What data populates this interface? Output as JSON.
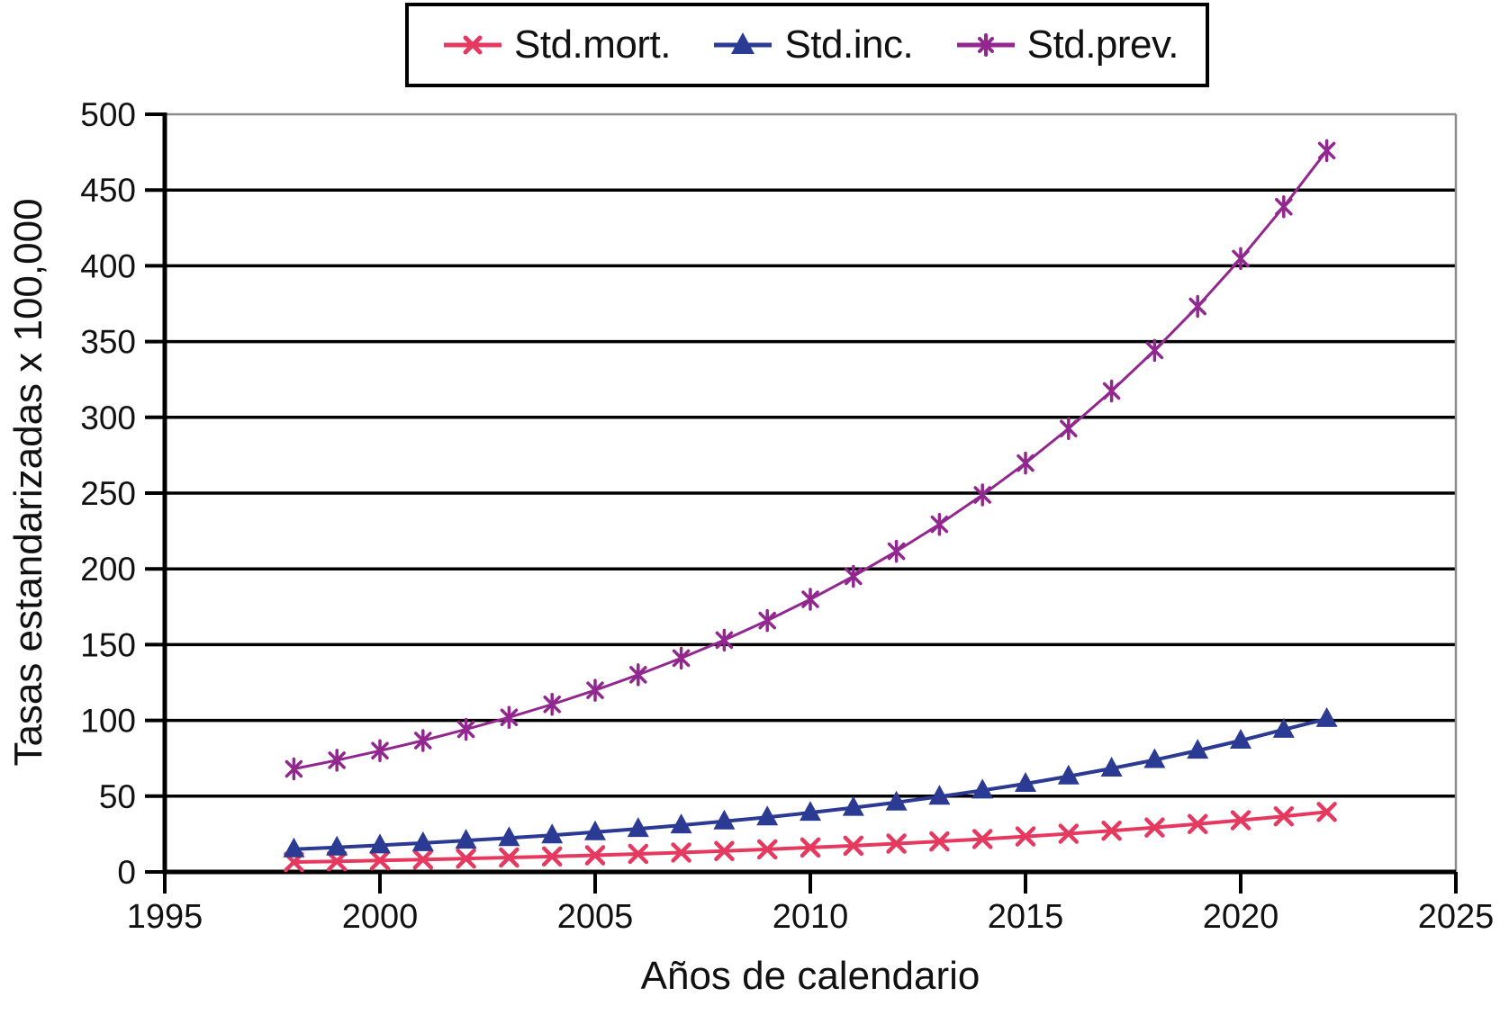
{
  "chart_data": {
    "type": "line",
    "title": "",
    "xlabel": "Años de calendario",
    "ylabel": "Tasas estandarizadas x 100,000",
    "xlim": [
      1995,
      2025
    ],
    "ylim": [
      0,
      500
    ],
    "x_ticks": [
      1995,
      2000,
      2005,
      2010,
      2015,
      2020,
      2025
    ],
    "y_ticks": [
      0,
      50,
      100,
      150,
      200,
      250,
      300,
      350,
      400,
      450,
      500
    ],
    "grid": "horizontal",
    "legend_position": "top-center",
    "axis_color": "#000000",
    "gridline_color": "#000000",
    "plot_border_color": "#8c8c8c",
    "x": [
      1998,
      1999,
      2000,
      2001,
      2002,
      2003,
      2004,
      2005,
      2006,
      2007,
      2008,
      2009,
      2010,
      2011,
      2012,
      2013,
      2014,
      2015,
      2016,
      2017,
      2018,
      2019,
      2020,
      2021,
      2022
    ],
    "series": [
      {
        "name": "Std.mort.",
        "color": "#e63960",
        "marker": "x-cross",
        "values": [
          6.5,
          7.0,
          7.6,
          8.2,
          8.8,
          9.5,
          10.2,
          11.0,
          11.9,
          12.8,
          13.8,
          14.9,
          16.1,
          17.3,
          18.7,
          20.1,
          21.7,
          23.4,
          25.2,
          27.2,
          29.3,
          31.6,
          34.1,
          36.7,
          39.6
        ]
      },
      {
        "name": "Std.inc.",
        "color": "#2b3a92",
        "marker": "triangle",
        "values": [
          15.0,
          16.2,
          17.6,
          19.1,
          20.7,
          22.4,
          24.2,
          26.3,
          28.4,
          30.8,
          33.4,
          36.1,
          39.1,
          42.4,
          45.9,
          49.7,
          53.8,
          58.2,
          63.1,
          68.3,
          73.9,
          80.1,
          86.7,
          93.9,
          101.0
        ]
      },
      {
        "name": "Std.prev.",
        "color": "#92278f",
        "marker": "asterisk",
        "values": [
          68.0,
          73.7,
          80.0,
          86.7,
          94.1,
          102.0,
          110.6,
          119.9,
          130.1,
          141.1,
          153.0,
          165.9,
          179.9,
          195.1,
          211.6,
          229.4,
          248.8,
          269.8,
          292.6,
          317.4,
          344.2,
          373.2,
          404.8,
          439.0,
          476.0
        ]
      }
    ]
  }
}
